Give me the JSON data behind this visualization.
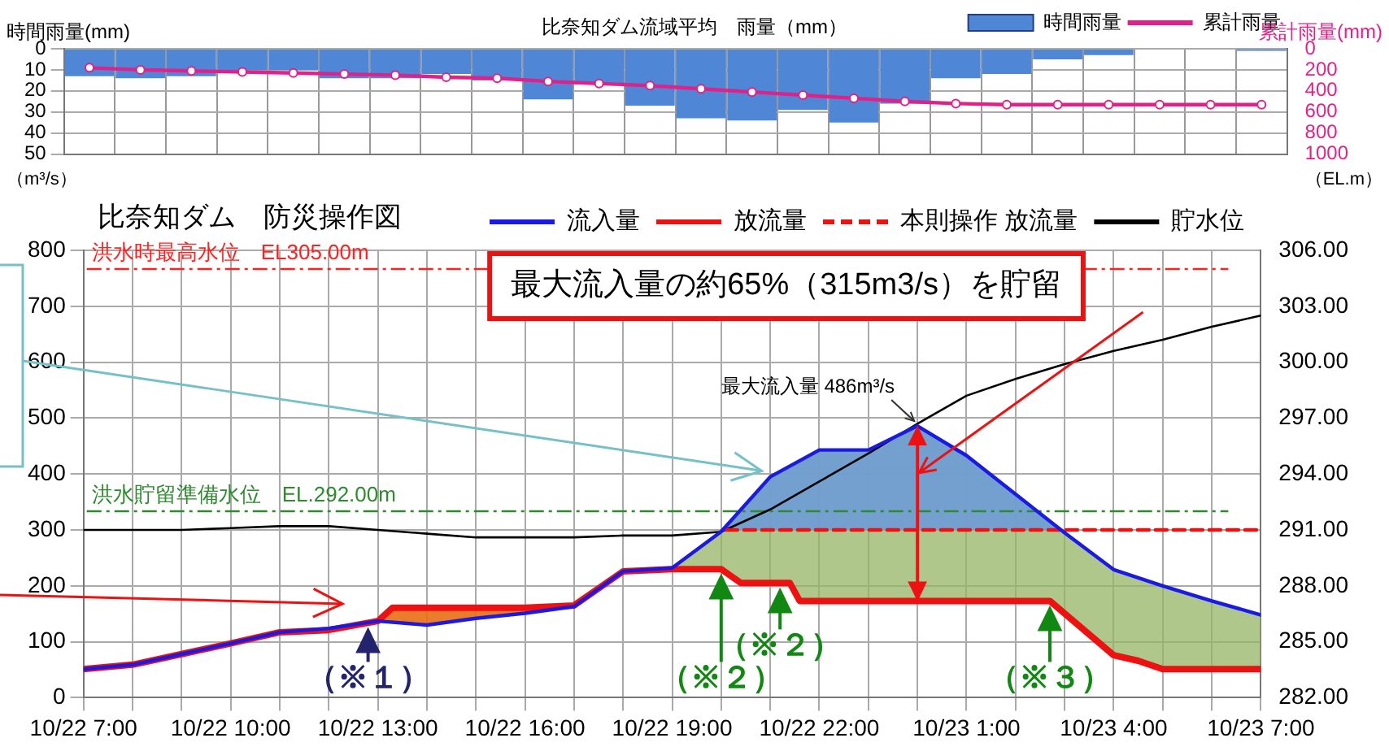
{
  "chart_data": [
    {
      "type": "bar",
      "title": "比奈知ダム流域平均　雨量（mm）",
      "ylabel": "時間雨量(mm)",
      "y2label": "累計雨量(mm)",
      "categories": [
        null,
        null,
        null,
        null,
        null,
        null,
        null,
        null,
        null,
        null,
        null,
        null,
        null,
        null,
        null,
        null,
        null,
        null,
        null,
        null,
        null,
        null,
        null,
        null
      ],
      "series": [
        {
          "name": "時間雨量",
          "type": "bar",
          "color": "#4f86d6",
          "values": [
            13,
            14,
            13,
            10,
            10,
            14,
            14,
            12,
            15,
            24,
            17,
            27,
            33,
            34,
            29,
            35,
            26,
            14,
            12,
            5,
            3,
            0,
            0,
            1
          ]
        },
        {
          "name": "累計雨量",
          "type": "line",
          "axis": "y2",
          "color": "#e0218a",
          "values": [
            180,
            200,
            210,
            220,
            230,
            240,
            250,
            270,
            280,
            310,
            330,
            350,
            380,
            410,
            440,
            470,
            500,
            520,
            530,
            530,
            530,
            530,
            530,
            530
          ]
        }
      ],
      "ylim": [
        50,
        0
      ],
      "yticks": [
        0,
        10,
        20,
        30,
        40,
        50
      ],
      "y2lim": [
        1000,
        0
      ],
      "y2ticks": [
        0,
        200,
        400,
        600,
        800,
        1000
      ],
      "grid": true,
      "legend": "top right",
      "marker": "circle"
    },
    {
      "type": "line",
      "title": "比奈知ダム　防災操作図",
      "ylabel": "（m³/s）",
      "y2label": "（EL.m）",
      "series": [
        {
          "name": "流入量",
          "color": "#1a1ae6",
          "x": [
            "--10-22T07:00",
            "--10-22T08:00",
            "--10-22T09:00",
            "--10-22T10:00",
            "--10-22T11:00",
            "--10-22T12:00",
            "--10-22T13:00",
            "--10-22T14:00",
            "--10-22T15:00",
            "--10-22T16:00",
            "--10-22T17:00",
            "--10-22T18:00",
            "--10-22T19:00",
            "--10-22T20:00",
            "--10-22T21:00",
            "--10-22T22:00",
            "--10-22T23:00",
            "--10-23T00:00",
            "--10-23T01:00",
            "--10-23T02:00",
            "--10-23T03:00",
            "--10-23T04:00",
            "--10-23T05:00",
            "--10-23T06:00",
            "--10-23T07:00"
          ],
          "values": [
            51,
            59,
            78,
            97,
            117,
            124,
            137,
            130,
            142,
            151,
            163,
            226,
            232,
            297,
            395,
            443,
            443,
            486,
            433,
            364,
            295,
            229,
            200,
            173,
            148
          ]
        },
        {
          "name": "放流量",
          "color": "#ee1111",
          "x": [
            "--10-22T07:00",
            "--10-22T08:00",
            "--10-22T09:00",
            "--10-22T10:00",
            "--10-22T11:00",
            "--10-22T12:00",
            "--10-22T13:00",
            "--10-22T13:18",
            "--10-22T14:00",
            "--10-22T15:00",
            "--10-22T16:00",
            "--10-22T17:00",
            "--10-22T18:00",
            "--10-22T19:00",
            "--10-22T20:00",
            "--10-22T20:24",
            "--10-22T21:24",
            "--10-22T21:36",
            "--10-23T02:42",
            "--10-23T04:00",
            "--10-23T04:30",
            "--10-23T05:00",
            "--10-23T07:00"
          ],
          "values": [
            51,
            59,
            78,
            97,
            117,
            121,
            137,
            161,
            161,
            161,
            161,
            165,
            226,
            230,
            230,
            205,
            205,
            173,
            173,
            76,
            66,
            51,
            51
          ]
        },
        {
          "name": "本則操作 放流量",
          "color": "#ee1111",
          "line_style": "dashed",
          "x": [
            "--10-22T20:06",
            "--10-23T07:00"
          ],
          "values": [
            300,
            300
          ]
        },
        {
          "name": "貯水位",
          "color": "#000000",
          "axis": "y2",
          "x": [
            "--10-22T07:00",
            "--10-22T08:00",
            "--10-22T09:00",
            "--10-22T10:00",
            "--10-22T11:00",
            "--10-22T12:00",
            "--10-22T13:00",
            "--10-22T14:00",
            "--10-22T15:00",
            "--10-22T16:00",
            "--10-22T17:00",
            "--10-22T18:00",
            "--10-22T19:00",
            "--10-22T20:00",
            "--10-22T21:00",
            "--10-22T22:00",
            "--10-22T23:00",
            "--10-23T00:00",
            "--10-23T01:00",
            "--10-23T02:00",
            "--10-23T03:00",
            "--10-23T04:00",
            "--10-23T05:00",
            "--10-23T06:00",
            "--10-23T07:00"
          ],
          "values": [
            291.0,
            291.0,
            291.0,
            291.1,
            291.2,
            291.2,
            291.0,
            290.8,
            290.6,
            290.6,
            290.6,
            290.7,
            290.7,
            290.9,
            292.1,
            293.6,
            295.1,
            296.7,
            298.2,
            299.1,
            299.9,
            300.6,
            301.2,
            301.9,
            302.5
          ]
        }
      ],
      "xlim": [
        "--10-22T07:00",
        "--10-23T07:00"
      ],
      "xticks": [
        {
          "value": "--10-22T07:00",
          "label": "10/22 7:00"
        },
        {
          "value": "--10-22T08:00",
          "label": null
        },
        {
          "value": "--10-22T09:00",
          "label": null
        },
        {
          "value": "--10-22T10:00",
          "label": "10/22 10:00"
        },
        {
          "value": "--10-22T11:00",
          "label": null
        },
        {
          "value": "--10-22T12:00",
          "label": null
        },
        {
          "value": "--10-22T13:00",
          "label": "10/22 13:00"
        },
        {
          "value": "--10-22T14:00",
          "label": null
        },
        {
          "value": "--10-22T15:00",
          "label": null
        },
        {
          "value": "--10-22T16:00",
          "label": "10/22 16:00"
        },
        {
          "value": "--10-22T17:00",
          "label": null
        },
        {
          "value": "--10-22T18:00",
          "label": null
        },
        {
          "value": "--10-22T19:00",
          "label": "10/22 19:00"
        },
        {
          "value": "--10-22T20:00",
          "label": null
        },
        {
          "value": "--10-22T21:00",
          "label": null
        },
        {
          "value": "--10-22T22:00",
          "label": "10/22 22:00"
        },
        {
          "value": "--10-22T23:00",
          "label": null
        },
        {
          "value": "--10-23T00:00",
          "label": null
        },
        {
          "value": "--10-23T01:00",
          "label": "10/23 1:00"
        },
        {
          "value": "--10-23T02:00",
          "label": null
        },
        {
          "value": "--10-23T03:00",
          "label": null
        },
        {
          "value": "--10-23T04:00",
          "label": "10/23 4:00"
        },
        {
          "value": "--10-23T05:00",
          "label": null
        },
        {
          "value": "--10-23T06:00",
          "label": null
        },
        {
          "value": "--10-23T07:00",
          "label": "10/23 7:00"
        }
      ],
      "ylim": [
        0,
        800
      ],
      "yticks": [
        0,
        100,
        200,
        300,
        400,
        500,
        600,
        700,
        800
      ],
      "y2lim": [
        282,
        306
      ],
      "y2ticks": [
        {
          "value": 282,
          "label": "282.00"
        },
        {
          "value": 285,
          "label": "285.00"
        },
        {
          "value": 288,
          "label": "288.00"
        },
        {
          "value": 291,
          "label": "291.00"
        },
        {
          "value": 294,
          "label": "294.00"
        },
        {
          "value": 297,
          "label": "297.00"
        },
        {
          "value": 300,
          "label": "300.00"
        },
        {
          "value": 303,
          "label": "303.00"
        },
        {
          "value": 306,
          "label": "306.00"
        }
      ],
      "grid": true,
      "legend": "top right",
      "ref_lines": [
        {
          "axis": "y2",
          "value": 305,
          "label": "洪水時最高水位　EL305.00m",
          "color": "#ff2020",
          "line_style": "dashed"
        },
        {
          "axis": "y2",
          "value": 292,
          "label": "洪水貯留準備水位　EL.292.00m",
          "color": "#2e8b2e",
          "line_style": "dashed"
        }
      ],
      "annotations": [
        "最大流入量の約65%（315m3/s）を貯留",
        {
          "text": "最大流入量 486m³/s",
          "x": "--10-23T00:00",
          "y": 486
        },
        {
          "text": "（※１）",
          "x": "--10-22T12:48",
          "y": 134
        },
        {
          "text": "（※２）",
          "x": "--10-22T20:00",
          "y": 230
        },
        {
          "text": "（※２）",
          "x": "--10-22T21:12",
          "y": 205
        },
        {
          "text": "（※３）",
          "x": "--10-23T02:42",
          "y": 173
        }
      ]
    }
  ]
}
